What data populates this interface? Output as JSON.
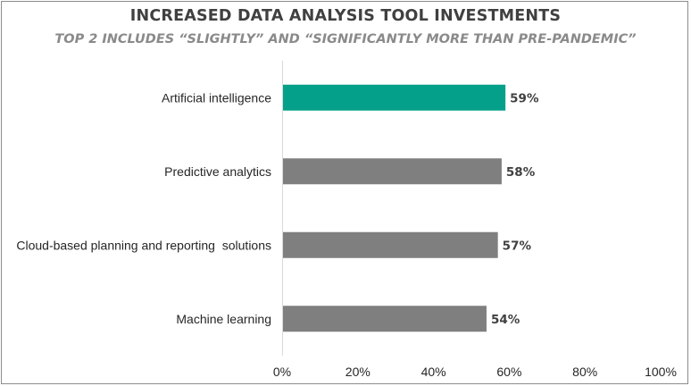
{
  "chart_data": {
    "type": "bar",
    "orientation": "horizontal",
    "title": "INCREASED DATA ANALYSIS TOOL INVESTMENTS",
    "subtitle": "TOP 2 INCLUDES “SLIGHTLY” AND “SIGNIFICANTLY MORE THAN PRE-PANDEMIC”",
    "categories": [
      "Artificial intelligence",
      "Predictive analytics",
      "Cloud-based planning and reporting  solutions",
      "Machine learning"
    ],
    "values": [
      59,
      58,
      57,
      54
    ],
    "value_labels": [
      "59%",
      "58%",
      "57%",
      "54%"
    ],
    "xlim": [
      0,
      100
    ],
    "x_ticks": [
      "0%",
      "20%",
      "40%",
      "60%",
      "80%",
      "100%"
    ],
    "grid": false,
    "legend": "none",
    "colors": {
      "highlight": "#05a08a",
      "default": "#7f7f7f",
      "axis": "#d9d9d9"
    },
    "highlight_index": 0
  }
}
